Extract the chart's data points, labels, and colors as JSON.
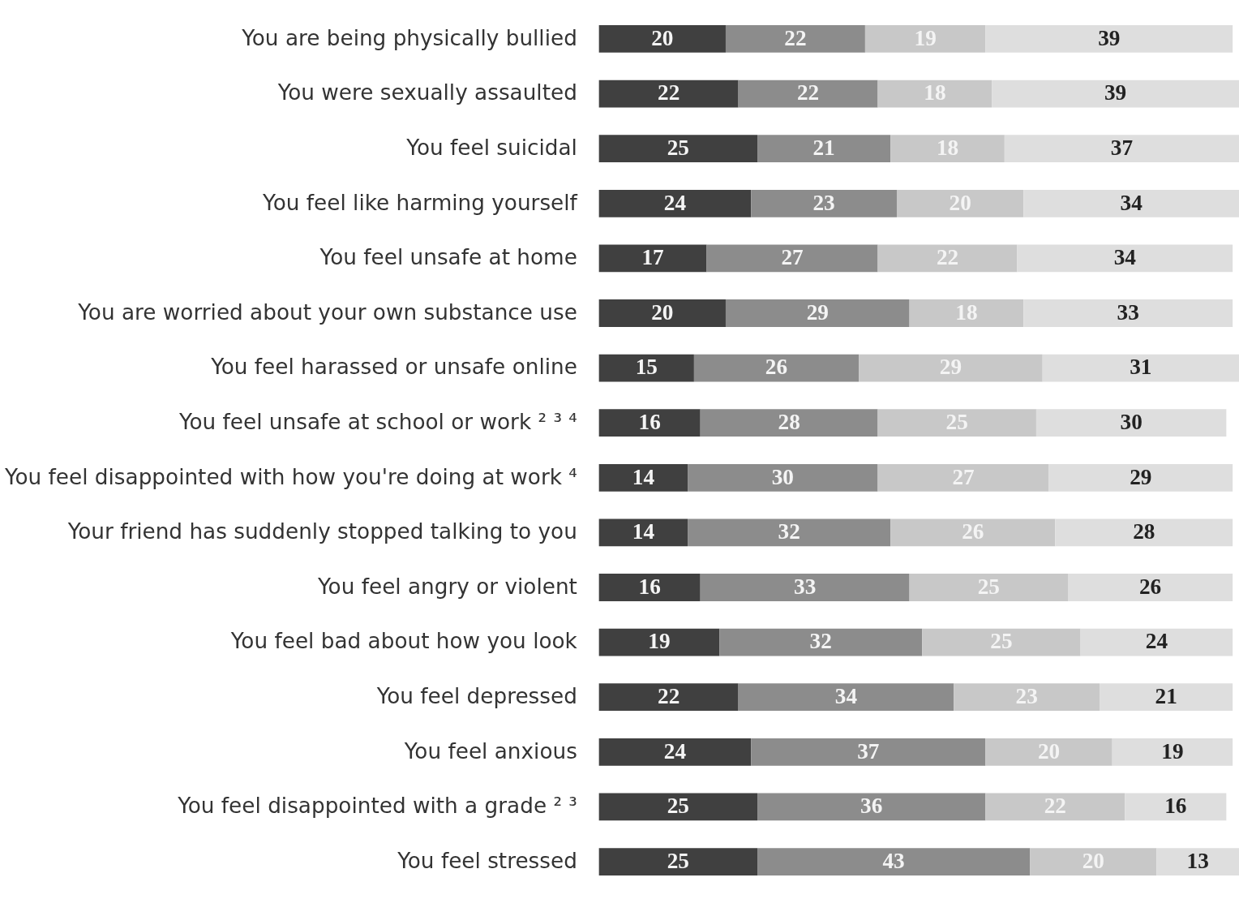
{
  "chart_data": {
    "type": "bar",
    "orientation": "horizontal",
    "stacked": true,
    "data_labels": true,
    "tick_labels": "y",
    "grid": false,
    "categories": [
      "You are being physically bullied",
      "You were sexually assaulted",
      "You feel suicidal",
      "You feel like harming yourself",
      "You feel unsafe at home",
      "You are worried about your own substance use",
      "You feel harassed or unsafe online",
      "You feel unsafe at school or work ² ³ ⁴",
      "You feel disappointed with how you're doing at work ⁴",
      "Your friend has suddenly stopped talking to you",
      "You feel angry or violent",
      "You feel bad about how you look",
      "You feel depressed",
      "You feel anxious",
      "You feel disappointed with a grade ² ³",
      "You feel stressed"
    ],
    "series": [
      {
        "color": "#404040",
        "values": [
          20,
          22,
          25,
          24,
          17,
          20,
          15,
          16,
          14,
          14,
          16,
          19,
          22,
          24,
          25,
          25
        ]
      },
      {
        "color": "#8c8c8c",
        "values": [
          22,
          22,
          21,
          23,
          27,
          29,
          26,
          28,
          30,
          32,
          33,
          32,
          34,
          37,
          36,
          43
        ]
      },
      {
        "color": "#c8c8c8",
        "values": [
          19,
          18,
          18,
          20,
          22,
          18,
          29,
          25,
          27,
          26,
          25,
          25,
          23,
          20,
          22,
          20
        ]
      },
      {
        "color": "#dedede",
        "values": [
          39,
          39,
          37,
          34,
          34,
          33,
          31,
          30,
          29,
          28,
          26,
          24,
          21,
          19,
          16,
          13
        ]
      }
    ]
  }
}
